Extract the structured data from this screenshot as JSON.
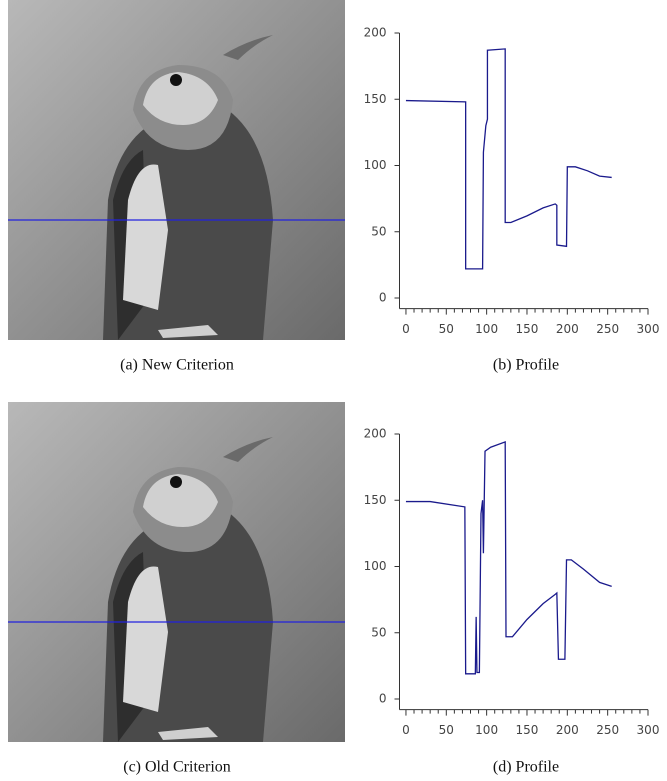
{
  "captions": [
    "(a) New Criterion",
    "(b) Profile",
    "(c) Old Criterion",
    "(d) Profile"
  ],
  "chart_data": [
    {
      "type": "line",
      "x": [
        0,
        74,
        74,
        95,
        96,
        99,
        101,
        101,
        123,
        123,
        130,
        150,
        170,
        185,
        187,
        187,
        199,
        200,
        210,
        225,
        240,
        255
      ],
      "series": [
        {
          "color": "#1a1a8c",
          "values": [
            149,
            148,
            22,
            22,
            110,
            130,
            135,
            187,
            188,
            57,
            57,
            62,
            68,
            71,
            70,
            40,
            39,
            99,
            99,
            96,
            92,
            91
          ]
        }
      ],
      "xlim": [
        -8,
        300
      ],
      "ylim": [
        -8,
        200
      ],
      "xticks": [
        0,
        50,
        100,
        150,
        200,
        250,
        300
      ],
      "yticks": [
        0,
        50,
        100,
        150,
        200
      ],
      "x_minor_ticks": [
        10,
        20,
        30,
        40,
        60,
        70,
        80,
        90,
        110,
        120,
        130,
        140,
        160,
        170,
        180,
        190,
        210,
        220,
        230,
        240,
        260,
        270,
        280,
        290
      ]
    },
    {
      "type": "line",
      "x": [
        0,
        30,
        73,
        74,
        86,
        87,
        88,
        91,
        93,
        95,
        96,
        98,
        105,
        123,
        124,
        132,
        150,
        170,
        185,
        187,
        189,
        197,
        199,
        205,
        220,
        240,
        255
      ],
      "series": [
        {
          "color": "#1a1a8c",
          "values": [
            149,
            149,
            145,
            19,
            19,
            62,
            20,
            20,
            140,
            150,
            110,
            187,
            190,
            194,
            47,
            47,
            60,
            72,
            79,
            80,
            30,
            30,
            105,
            105,
            98,
            88,
            85
          ]
        }
      ],
      "xlim": [
        -8,
        300
      ],
      "ylim": [
        -8,
        200
      ],
      "xticks": [
        0,
        50,
        100,
        150,
        200,
        250,
        300
      ],
      "yticks": [
        0,
        50,
        100,
        150,
        200
      ],
      "x_minor_ticks": [
        10,
        20,
        30,
        40,
        60,
        70,
        80,
        90,
        110,
        120,
        130,
        140,
        160,
        170,
        180,
        190,
        210,
        220,
        230,
        240,
        260,
        270,
        280,
        290
      ]
    }
  ]
}
